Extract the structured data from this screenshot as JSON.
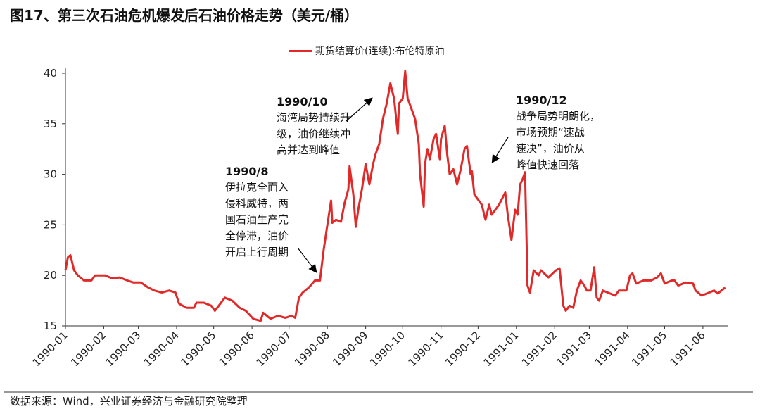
{
  "title": "图17、第三次石油危机爆发后石油价格走势（美元/桶）",
  "footer": "数据来源：Wind，兴业证券经济与金融研究院整理",
  "chart_data": {
    "type": "line",
    "title": "图17、第三次石油危机爆发后石油价格走势（美元/桶）",
    "ylim": [
      15,
      41
    ],
    "yticks": [
      15,
      20,
      25,
      30,
      35,
      40
    ],
    "xticks": [
      "1990-01",
      "1990-02",
      "1990-03",
      "1990-04",
      "1990-05",
      "1990-06",
      "1990-07",
      "1990-08",
      "1990-09",
      "1990-10",
      "1990-11",
      "1990-12",
      "1991-01",
      "1991-02",
      "1991-03",
      "1991-04",
      "1991-05",
      "1991-06"
    ],
    "grid": false,
    "legend_position": "top-center",
    "series": [
      {
        "name": "期货结算价(连续):布伦特原油",
        "color": "#e02a2a",
        "x": [
          "1990-01-01",
          "1990-01-03",
          "1990-01-05",
          "1990-01-08",
          "1990-01-11",
          "1990-01-16",
          "1990-01-22",
          "1990-01-25",
          "1990-02-02",
          "1990-02-08",
          "1990-02-14",
          "1990-02-20",
          "1990-02-25",
          "1990-03-03",
          "1990-03-09",
          "1990-03-14",
          "1990-03-20",
          "1990-03-26",
          "1990-03-31",
          "1990-04-03",
          "1990-04-09",
          "1990-04-15",
          "1990-04-17",
          "1990-04-23",
          "1990-04-29",
          "1990-05-02",
          "1990-05-10",
          "1990-05-16",
          "1990-05-22",
          "1990-05-27",
          "1990-06-02",
          "1990-06-08",
          "1990-06-10",
          "1990-06-16",
          "1990-06-22",
          "1990-06-28",
          "1990-07-03",
          "1990-07-06",
          "1990-07-09",
          "1990-07-12",
          "1990-07-17",
          "1990-07-22",
          "1990-07-26",
          "1990-07-29",
          "1990-08-01",
          "1990-08-04",
          "1990-08-05",
          "1990-08-08",
          "1990-08-12",
          "1990-08-15",
          "1990-08-18",
          "1990-08-19",
          "1990-08-22",
          "1990-08-24",
          "1990-08-26",
          "1990-08-29",
          "1990-09-01",
          "1990-09-04",
          "1990-09-07",
          "1990-09-09",
          "1990-09-12",
          "1990-09-15",
          "1990-09-18",
          "1990-09-21",
          "1990-09-24",
          "1990-09-27",
          "1990-09-28",
          "1990-10-01",
          "1990-10-03",
          "1990-10-05",
          "1990-10-08",
          "1990-10-11",
          "1990-10-14",
          "1990-10-15",
          "1990-10-18",
          "1990-10-19",
          "1990-10-21",
          "1990-10-23",
          "1990-10-26",
          "1990-10-28",
          "1990-10-31",
          "1990-11-01",
          "1990-11-04",
          "1990-11-06",
          "1990-11-08",
          "1990-11-11",
          "1990-11-14",
          "1990-11-17",
          "1990-11-20",
          "1990-11-22",
          "1990-11-25",
          "1990-11-26",
          "1990-11-28",
          "1990-12-01",
          "1990-12-04",
          "1990-12-07",
          "1990-12-10",
          "1990-12-12",
          "1990-12-15",
          "1990-12-18",
          "1990-12-23",
          "1990-12-25",
          "1990-12-28",
          "1990-12-31",
          "1991-01-02",
          "1991-01-04",
          "1991-01-06",
          "1991-01-08",
          "1991-01-09",
          "1991-01-10",
          "1991-01-12",
          "1991-01-15",
          "1991-01-19",
          "1991-01-21",
          "1991-01-27",
          "1991-02-02",
          "1991-02-05",
          "1991-02-08",
          "1991-02-10",
          "1991-02-13",
          "1991-02-16",
          "1991-02-19",
          "1991-02-22",
          "1991-02-25",
          "1991-02-27",
          "1991-03-02",
          "1991-03-05",
          "1991-03-07",
          "1991-03-09",
          "1991-03-12",
          "1991-03-16",
          "1991-03-22",
          "1991-03-25",
          "1991-03-31",
          "1991-04-03",
          "1991-04-05",
          "1991-04-08",
          "1991-04-14",
          "1991-04-20",
          "1991-04-25",
          "1991-04-28",
          "1991-05-01",
          "1991-05-07",
          "1991-05-09",
          "1991-05-12",
          "1991-05-18",
          "1991-05-24",
          "1991-05-26",
          "1991-05-31",
          "1991-06-04",
          "1991-06-10",
          "1991-06-13",
          "1991-06-16",
          "1991-06-19"
        ],
        "y": [
          20.5,
          21.8,
          22.0,
          20.5,
          20.0,
          19.5,
          19.5,
          20.0,
          20.0,
          19.7,
          19.8,
          19.5,
          19.3,
          19.3,
          18.8,
          18.5,
          18.3,
          18.5,
          18.3,
          17.2,
          16.8,
          16.8,
          17.3,
          17.3,
          17.0,
          16.5,
          17.8,
          17.5,
          16.8,
          16.5,
          15.7,
          15.5,
          16.3,
          15.7,
          16.0,
          15.8,
          16.0,
          15.8,
          17.8,
          18.3,
          18.8,
          19.5,
          19.5,
          22.5,
          25.0,
          27.4,
          25.2,
          25.5,
          25.3,
          27.2,
          28.5,
          30.8,
          28.0,
          24.8,
          26.5,
          28.5,
          31.0,
          29.0,
          31.0,
          32.0,
          33.0,
          35.5,
          37.0,
          39.0,
          37.5,
          34.0,
          37.0,
          37.5,
          40.2,
          37.5,
          36.5,
          35.5,
          33.0,
          30.0,
          26.8,
          31.0,
          32.5,
          31.5,
          33.5,
          34.0,
          31.5,
          33.5,
          34.8,
          32.0,
          30.0,
          30.5,
          29.0,
          30.5,
          32.5,
          32.8,
          30.0,
          30.3,
          28.0,
          27.5,
          27.0,
          25.5,
          27.0,
          26.0,
          26.5,
          27.0,
          28.2,
          26.0,
          23.5,
          26.5,
          26.0,
          29.0,
          29.5,
          30.2,
          25.0,
          19.0,
          18.3,
          20.5,
          20.0,
          20.5,
          19.8,
          20.5,
          20.7,
          17.0,
          16.5,
          17.0,
          16.8,
          18.5,
          19.5,
          19.0,
          18.5,
          18.5,
          20.8,
          17.8,
          17.5,
          18.5,
          18.3,
          18.0,
          18.5,
          18.5,
          20.0,
          20.2,
          19.2,
          19.5,
          19.5,
          19.8,
          20.2,
          19.2,
          19.5,
          19.5,
          19.0,
          19.3,
          19.2,
          18.5,
          18.0,
          18.2,
          18.5,
          18.2,
          18.5,
          18.8
        ]
      }
    ],
    "annotations": [
      {
        "heading": "1990/8",
        "lines": [
          "伊拉克全面入",
          "侵科威特，两",
          "国石油生产完",
          "全停滞，油价",
          "开启上行周期"
        ]
      },
      {
        "heading": "1990/10",
        "lines": [
          "海湾局势持续升",
          "级，油价继续冲",
          "高并达到峰值"
        ]
      },
      {
        "heading": "1990/12",
        "lines": [
          "战争局势明朗化，",
          "市场预期“速战",
          "速决”，油价从",
          "峰值快速回落"
        ]
      }
    ]
  }
}
